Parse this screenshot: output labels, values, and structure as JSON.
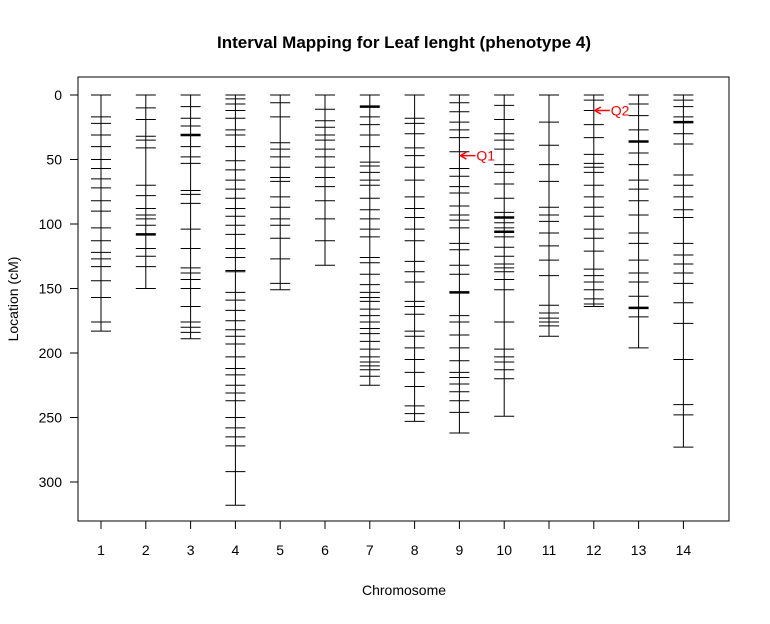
{
  "chart_data": {
    "type": "genetic-map",
    "title": "Interval Mapping for Leaf lenght (phenotype 4)",
    "xlabel": "Chromosome",
    "ylabel": "Location (cM)",
    "ylim": [
      0,
      330
    ],
    "y_reversed": true,
    "yticks": [
      0,
      50,
      100,
      150,
      200,
      250,
      300
    ],
    "chromosomes": [
      {
        "name": "1",
        "length": 183,
        "markers": [
          0,
          17,
          22,
          31,
          40,
          50,
          57,
          65,
          72,
          82,
          90,
          103,
          113,
          122,
          127,
          133,
          144,
          157,
          176,
          183
        ],
        "thick": []
      },
      {
        "name": "2",
        "length": 150,
        "markers": [
          0,
          10,
          19,
          32,
          35,
          41,
          70,
          78,
          88,
          93,
          96,
          101,
          108,
          119,
          125,
          133,
          150
        ],
        "thick": [
          108
        ]
      },
      {
        "name": "3",
        "length": 189,
        "markers": [
          0,
          9,
          18,
          24,
          31,
          40,
          48,
          53,
          74,
          77,
          84,
          104,
          119,
          134,
          138,
          143,
          150,
          164,
          176,
          180,
          184,
          189
        ],
        "thick": [
          31
        ]
      },
      {
        "name": "4",
        "length": 318,
        "markers": [
          0,
          3,
          7,
          12,
          18,
          27,
          31,
          40,
          51,
          58,
          66,
          73,
          80,
          88,
          94,
          101,
          108,
          119,
          126,
          136,
          137,
          153,
          159,
          167,
          175,
          182,
          187,
          193,
          203,
          212,
          217,
          225,
          231,
          237,
          250,
          258,
          265,
          272,
          292,
          318
        ],
        "thick": []
      },
      {
        "name": "5",
        "length": 151,
        "markers": [
          0,
          6,
          17,
          37,
          42,
          48,
          56,
          64,
          67,
          79,
          87,
          96,
          101,
          111,
          127,
          146,
          151
        ],
        "thick": []
      },
      {
        "name": "6",
        "length": 132,
        "markers": [
          0,
          11,
          20,
          25,
          31,
          35,
          42,
          48,
          56,
          64,
          71,
          82,
          96,
          113,
          132
        ],
        "thick": []
      },
      {
        "name": "7",
        "length": 225,
        "markers": [
          0,
          9,
          17,
          23,
          31,
          40,
          52,
          55,
          60,
          66,
          70,
          80,
          89,
          96,
          104,
          110,
          126,
          130,
          139,
          147,
          153,
          157,
          160,
          166,
          171,
          176,
          181,
          185,
          191,
          197,
          203,
          207,
          210,
          213,
          218,
          225
        ],
        "thick": [
          9,
          206
        ]
      },
      {
        "name": "8",
        "length": 253,
        "markers": [
          0,
          18,
          22,
          30,
          41,
          47,
          56,
          66,
          79,
          88,
          95,
          104,
          113,
          129,
          137,
          145,
          160,
          164,
          170,
          183,
          187,
          196,
          205,
          215,
          226,
          241,
          247,
          253
        ],
        "thick": []
      },
      {
        "name": "9",
        "length": 262,
        "markers": [
          0,
          6,
          13,
          21,
          27,
          33,
          44,
          57,
          63,
          71,
          76,
          86,
          93,
          97,
          103,
          115,
          120,
          132,
          139,
          153,
          171,
          176,
          186,
          196,
          206,
          215,
          219,
          224,
          230,
          237,
          246,
          262
        ],
        "thick": [
          153
        ]
      },
      {
        "name": "10",
        "length": 249,
        "markers": [
          0,
          8,
          19,
          30,
          35,
          42,
          54,
          60,
          69,
          80,
          91,
          95,
          99,
          103,
          106,
          110,
          118,
          125,
          131,
          134,
          137,
          143,
          151,
          176,
          197,
          203,
          207,
          213,
          220,
          249
        ],
        "thick": [
          95,
          106,
          133
        ]
      },
      {
        "name": "11",
        "length": 187,
        "markers": [
          0,
          21,
          39,
          54,
          67,
          87,
          93,
          98,
          107,
          117,
          128,
          140,
          163,
          169,
          173,
          176,
          179,
          187
        ],
        "thick": []
      },
      {
        "name": "12",
        "length": 164,
        "markers": [
          0,
          4,
          12,
          23,
          33,
          46,
          53,
          56,
          60,
          70,
          79,
          87,
          94,
          104,
          111,
          121,
          135,
          140,
          145,
          151,
          158,
          162,
          164
        ],
        "thick": [
          55,
          159
        ]
      },
      {
        "name": "13",
        "length": 196,
        "markers": [
          0,
          7,
          16,
          27,
          36,
          45,
          54,
          66,
          73,
          82,
          93,
          107,
          115,
          128,
          138,
          145,
          156,
          165,
          172,
          196
        ],
        "thick": [
          36,
          165
        ]
      },
      {
        "name": "14",
        "length": 273,
        "markers": [
          0,
          4,
          9,
          17,
          21,
          30,
          38,
          62,
          70,
          79,
          89,
          95,
          115,
          124,
          131,
          138,
          146,
          161,
          177,
          205,
          240,
          248,
          273
        ],
        "thick": [
          21
        ]
      }
    ],
    "qtl_annotations": [
      {
        "label": "Q1",
        "chromosome": "9",
        "position": 47
      },
      {
        "label": "Q2",
        "chromosome": "12",
        "position": 12
      }
    ]
  }
}
